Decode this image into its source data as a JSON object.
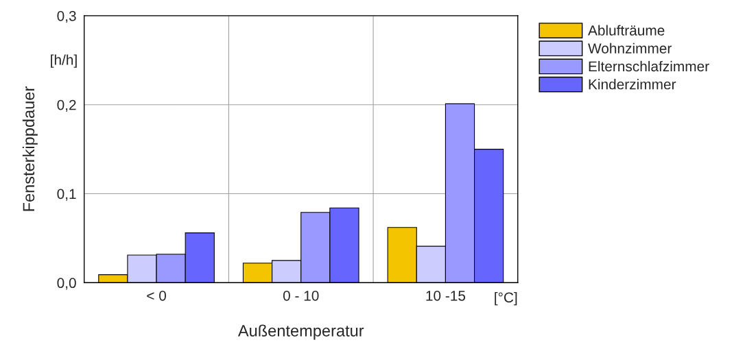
{
  "chart_data": {
    "type": "bar",
    "xlabel": "Außentemperatur",
    "ylabel": "Fensterkippdauer",
    "categories": [
      "< 0",
      "0 - 10",
      "10 -15"
    ],
    "series": [
      {
        "name": "Ablufträume",
        "color": "#f5c400",
        "values": [
          0.009,
          0.022,
          0.062
        ]
      },
      {
        "name": "Wohnzimmer",
        "color": "#ccccff",
        "values": [
          0.031,
          0.025,
          0.041
        ]
      },
      {
        "name": "Elternschlafzimmer",
        "color": "#9999ff",
        "values": [
          0.032,
          0.079,
          0.201
        ]
      },
      {
        "name": "Kinderzimmer",
        "color": "#6666ff",
        "values": [
          0.056,
          0.084,
          0.15
        ]
      }
    ],
    "ylim": [
      0,
      0.3
    ],
    "yticks": [
      {
        "value": 0,
        "label": "0,0"
      },
      {
        "value": 0.1,
        "label": "0,1"
      },
      {
        "value": 0.2,
        "label": "0,2"
      },
      {
        "value": 0.3,
        "label": "0,3"
      }
    ],
    "annotations": [
      "[h/h]",
      "[°C]"
    ],
    "grid": true,
    "legend": "top right"
  }
}
